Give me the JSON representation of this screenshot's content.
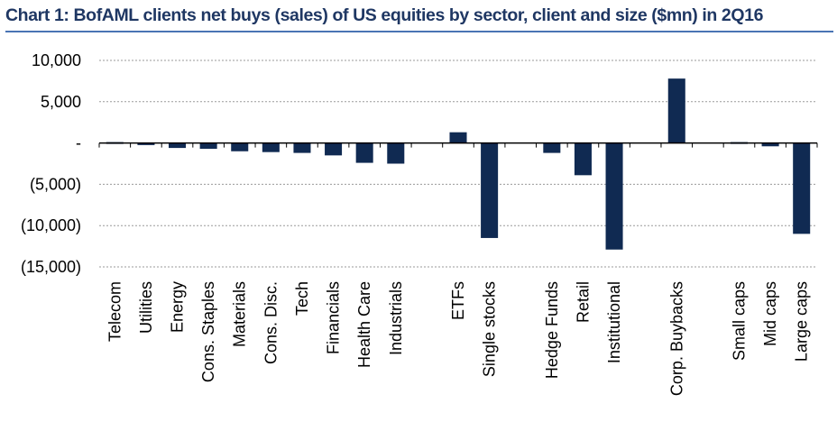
{
  "title": "Chart 1: BofAML clients net buys (sales) of US equities by sector, client and size ($mn) in 2Q16",
  "colors": {
    "bar": "#102a52",
    "title": "#1f3763",
    "rule": "#4a74b4",
    "grid": "#9a9a9a"
  },
  "chart_data": {
    "type": "bar",
    "title": "Chart 1: BofAML clients net buys (sales) of US equities by sector, client and size ($mn) in 2Q16",
    "xlabel": "",
    "ylabel": "",
    "ylim": [
      -15000,
      10000
    ],
    "yticks": [
      {
        "value": 10000,
        "label": "10,000"
      },
      {
        "value": 5000,
        "label": "5,000"
      },
      {
        "value": 0,
        "label": "-"
      },
      {
        "value": -5000,
        "label": "(5,000)"
      },
      {
        "value": -10000,
        "label": "(10,000)"
      },
      {
        "value": -15000,
        "label": "(15,000)"
      }
    ],
    "grid": true,
    "legend": "none",
    "categories": [
      "Telecom",
      "Utilities",
      "Energy",
      "Cons. Staples",
      "Materials",
      "Cons. Disc.",
      "Tech",
      "Financials",
      "Health Care",
      "Industrials",
      "",
      "ETFs",
      "Single stocks",
      "",
      "Hedge Funds",
      "Retail",
      "Institutional",
      "",
      "Corp. Buybacks",
      "",
      "Small caps",
      "Mid caps",
      "Large caps"
    ],
    "values": [
      100,
      -250,
      -600,
      -700,
      -1000,
      -1100,
      -1200,
      -1500,
      -2400,
      -2500,
      null,
      1300,
      -11500,
      null,
      -1200,
      -3900,
      -12900,
      null,
      7800,
      null,
      0,
      -400,
      -11000
    ]
  }
}
